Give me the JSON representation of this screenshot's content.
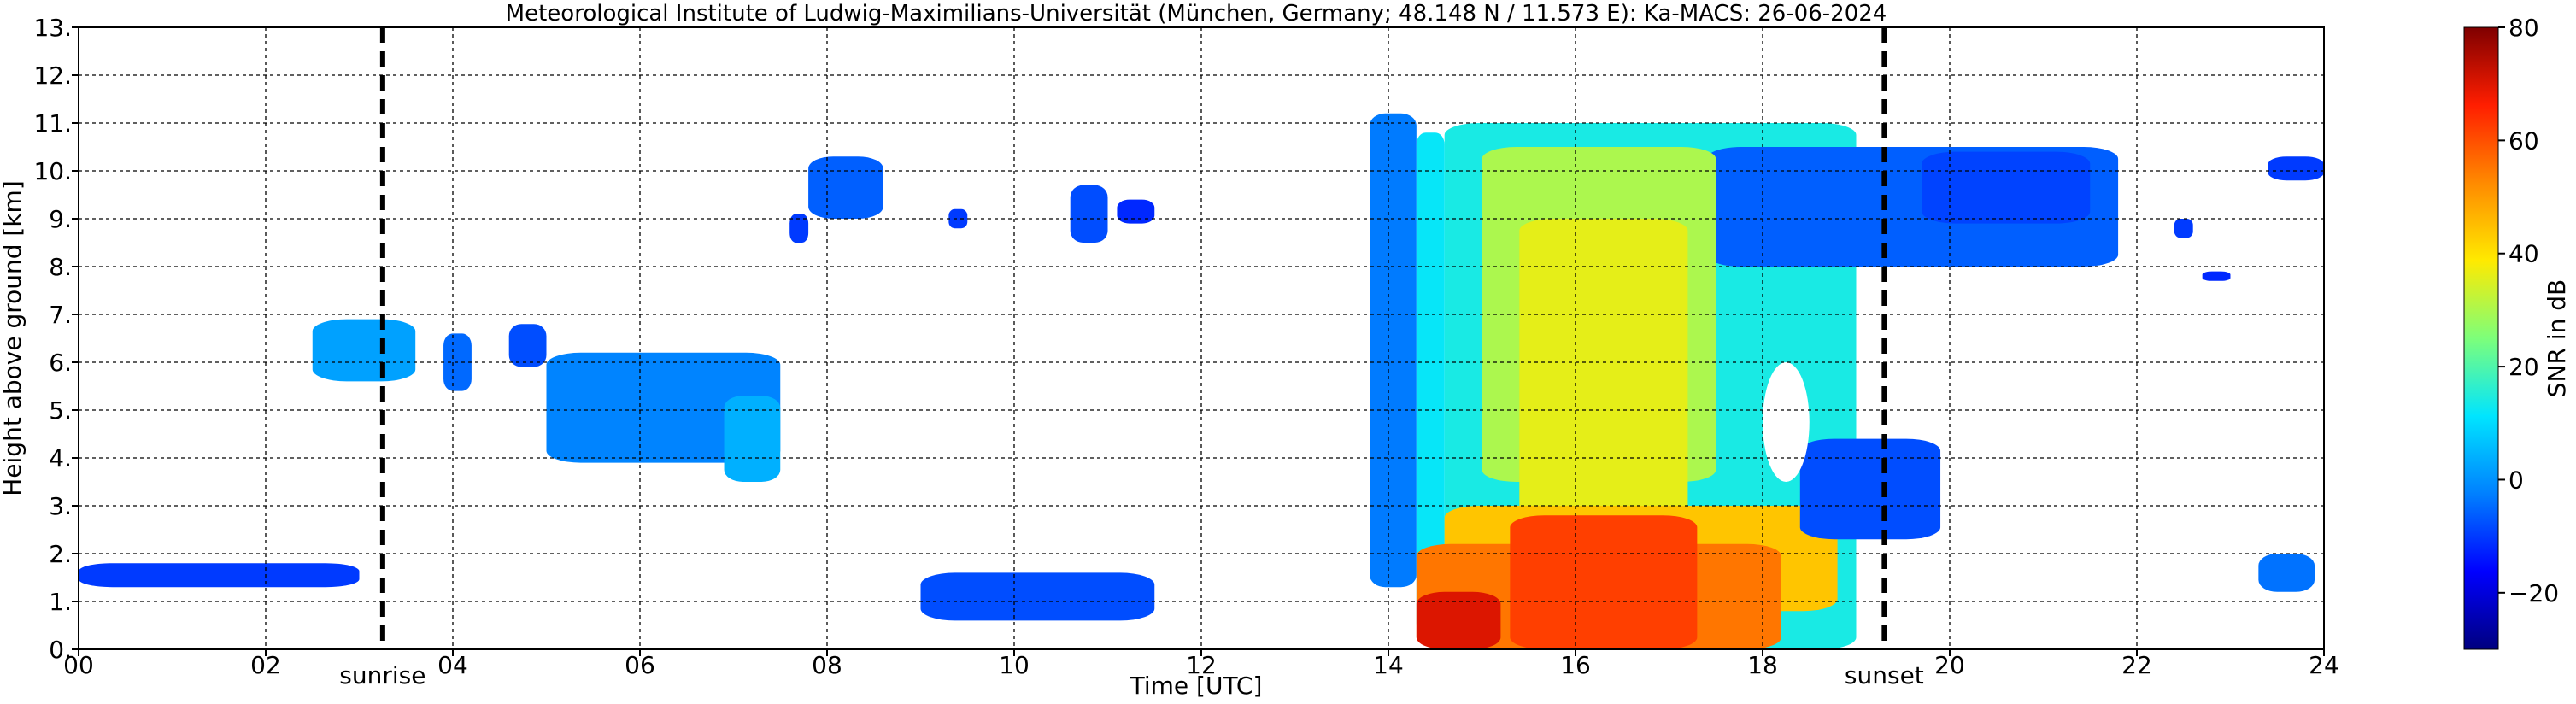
{
  "chart_data": {
    "type": "heatmap",
    "title": "Meteorological Institute of Ludwig-Maximilians-Universität (München, Germany; 48.148 N / 11.573 E):    Ka-MACS: 26-06-2024",
    "xlabel": "Time [UTC]",
    "ylabel": "Height above ground [km]",
    "xlim": [
      0,
      24
    ],
    "ylim": [
      0,
      13
    ],
    "x_ticks": [
      0,
      2,
      4,
      6,
      8,
      10,
      12,
      14,
      16,
      18,
      20,
      22,
      24
    ],
    "x_tick_labels": [
      "00",
      "02",
      "04",
      "06",
      "08",
      "10",
      "12",
      "14",
      "16",
      "18",
      "20",
      "22",
      "24"
    ],
    "y_ticks": [
      0,
      1,
      2,
      3,
      4,
      5,
      6,
      7,
      8,
      9,
      10,
      11,
      12,
      13
    ],
    "y_tick_labels": [
      "0.",
      "1.",
      "2.",
      "3.",
      "4.",
      "5.",
      "6.",
      "7.",
      "8.",
      "9.",
      "10.",
      "11.",
      "12.",
      "13."
    ],
    "grid": true,
    "markers": [
      {
        "label": "sunrise",
        "x": 3.25
      },
      {
        "label": "sunset",
        "x": 19.3
      }
    ],
    "colorbar": {
      "label": "SNR in dB",
      "range": [
        -30,
        80
      ],
      "ticks": [
        -20,
        0,
        20,
        40,
        60,
        80
      ],
      "tick_labels": [
        "−20",
        "0",
        "20",
        "40",
        "60",
        "80"
      ],
      "colors": [
        "#00007f",
        "#0000ff",
        "#0080ff",
        "#00e5ff",
        "#7dff7a",
        "#ffea00",
        "#ff8a00",
        "#ff1e00",
        "#7f0000"
      ]
    },
    "snr_regions": [
      {
        "t0": 2.5,
        "t1": 3.6,
        "h0": 5.6,
        "h1": 6.9,
        "snr": 2
      },
      {
        "t0": 3.9,
        "t1": 4.2,
        "h0": 5.4,
        "h1": 6.6,
        "snr": -5
      },
      {
        "t0": 4.6,
        "t1": 5.0,
        "h0": 5.9,
        "h1": 6.8,
        "snr": -8
      },
      {
        "t0": 5.0,
        "t1": 7.5,
        "h0": 3.9,
        "h1": 6.2,
        "snr": -2
      },
      {
        "t0": 6.9,
        "t1": 7.5,
        "h0": 3.5,
        "h1": 5.3,
        "snr": 4
      },
      {
        "t0": 7.8,
        "t1": 8.6,
        "h0": 9.0,
        "h1": 10.3,
        "snr": -6
      },
      {
        "t0": 7.6,
        "t1": 7.8,
        "h0": 8.5,
        "h1": 9.1,
        "snr": -10
      },
      {
        "t0": 9.3,
        "t1": 9.5,
        "h0": 8.8,
        "h1": 9.2,
        "snr": -10
      },
      {
        "t0": 10.6,
        "t1": 11.0,
        "h0": 8.5,
        "h1": 9.7,
        "snr": -8
      },
      {
        "t0": 11.1,
        "t1": 11.5,
        "h0": 8.9,
        "h1": 9.4,
        "snr": -12
      },
      {
        "t0": 13.8,
        "t1": 14.3,
        "h0": 1.3,
        "h1": 11.2,
        "snr": -3
      },
      {
        "t0": 14.3,
        "t1": 14.6,
        "h0": 0.3,
        "h1": 10.8,
        "snr": 12
      },
      {
        "t0": 14.6,
        "t1": 19.0,
        "h0": 0.0,
        "h1": 11.0,
        "snr": 14
      },
      {
        "t0": 17.4,
        "t1": 21.8,
        "h0": 8.0,
        "h1": 10.5,
        "snr": -6
      },
      {
        "t0": 19.7,
        "t1": 21.5,
        "h0": 8.9,
        "h1": 10.4,
        "snr": -9
      },
      {
        "t0": 15.0,
        "t1": 17.5,
        "h0": 3.5,
        "h1": 10.5,
        "snr": 30
      },
      {
        "t0": 15.4,
        "t1": 17.2,
        "h0": 2.0,
        "h1": 9.0,
        "snr": 36
      },
      {
        "t0": 14.6,
        "t1": 18.8,
        "h0": 0.8,
        "h1": 3.0,
        "snr": 44
      },
      {
        "t0": 14.3,
        "t1": 18.2,
        "h0": 0.0,
        "h1": 2.2,
        "snr": 55
      },
      {
        "t0": 15.3,
        "t1": 17.3,
        "h0": 0.0,
        "h1": 2.8,
        "snr": 62
      },
      {
        "t0": 14.3,
        "t1": 15.2,
        "h0": 0.0,
        "h1": 1.2,
        "snr": 70
      },
      {
        "t0": 18.4,
        "t1": 19.9,
        "h0": 2.3,
        "h1": 4.4,
        "snr": -8
      },
      {
        "t0": 22.4,
        "t1": 22.6,
        "h0": 8.6,
        "h1": 9.0,
        "snr": -10
      },
      {
        "t0": 22.7,
        "t1": 23.0,
        "h0": 7.7,
        "h1": 7.9,
        "snr": -12
      },
      {
        "t0": 23.4,
        "t1": 24.0,
        "h0": 9.8,
        "h1": 10.3,
        "snr": -10
      },
      {
        "t0": 23.3,
        "t1": 23.9,
        "h0": 1.2,
        "h1": 2.0,
        "snr": -4
      },
      {
        "t0": 0.0,
        "t1": 3.0,
        "h0": 1.3,
        "h1": 1.8,
        "snr": -10
      },
      {
        "t0": 9.0,
        "t1": 11.5,
        "h0": 0.6,
        "h1": 1.6,
        "snr": -8
      }
    ],
    "cloud_hole": {
      "t0": 18.0,
      "t1": 18.5,
      "h0": 3.5,
      "h1": 6.0
    }
  }
}
